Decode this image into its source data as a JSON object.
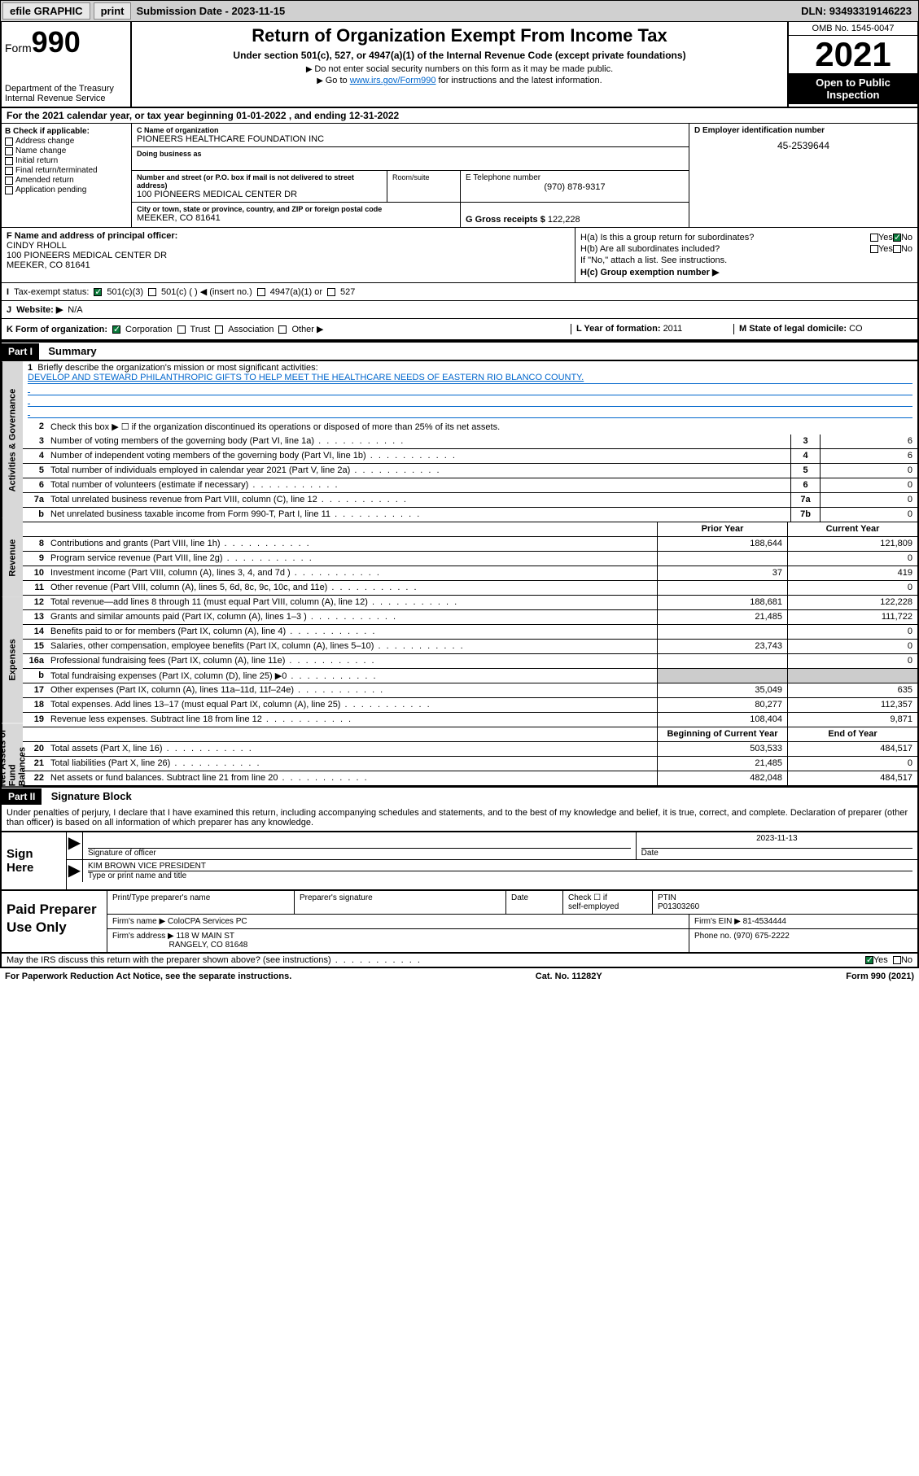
{
  "topbar": {
    "efile": "efile GRAPHIC",
    "print": "print",
    "sub_label": "Submission Date - ",
    "sub_date": "2023-11-15",
    "dln_label": "DLN: ",
    "dln": "93493319146223"
  },
  "header": {
    "form_prefix": "Form",
    "form_num": "990",
    "dept": "Department of the Treasury",
    "irs": "Internal Revenue Service",
    "title": "Return of Organization Exempt From Income Tax",
    "subtitle": "Under section 501(c), 527, or 4947(a)(1) of the Internal Revenue Code (except private foundations)",
    "instr1": "Do not enter social security numbers on this form as it may be made public.",
    "instr2_a": "Go to ",
    "instr2_link": "www.irs.gov/Form990",
    "instr2_b": " for instructions and the latest information.",
    "omb": "OMB No. 1545-0047",
    "year": "2021",
    "open": "Open to Public Inspection"
  },
  "A": {
    "line": "For the 2021 calendar year, or tax year beginning 01-01-2022 , and ending 12-31-2022"
  },
  "B": {
    "hdr": "B Check if applicable:",
    "opts": [
      "Address change",
      "Name change",
      "Initial return",
      "Final return/terminated",
      "Amended return",
      "Application pending"
    ]
  },
  "C": {
    "name_label": "C Name of organization",
    "name": "PIONEERS HEALTHCARE FOUNDATION INC",
    "dba_label": "Doing business as",
    "addr_label": "Number and street (or P.O. box if mail is not delivered to street address)",
    "addr": "100 PIONEERS MEDICAL CENTER DR",
    "room_label": "Room/suite",
    "city_label": "City or town, state or province, country, and ZIP or foreign postal code",
    "city": "MEEKER, CO  81641"
  },
  "D": {
    "label": "D Employer identification number",
    "val": "45-2539644"
  },
  "E": {
    "label": "E Telephone number",
    "val": "(970) 878-9317"
  },
  "G": {
    "label": "G Gross receipts $ ",
    "val": "122,228"
  },
  "F": {
    "label": "F Name and address of principal officer:",
    "name": "CINDY RHOLL",
    "addr1": "100 PIONEERS MEDICAL CENTER DR",
    "addr2": "MEEKER, CO  81641"
  },
  "H": {
    "a": "H(a)  Is this a group return for subordinates?",
    "b": "H(b)  Are all subordinates included?",
    "b_note": "If \"No,\" attach a list. See instructions.",
    "c": "H(c)  Group exemption number ▶",
    "yes": "Yes",
    "no": "No"
  },
  "I": {
    "label": "Tax-exempt status:",
    "o1": "501(c)(3)",
    "o2": "501(c) (  ) ◀ (insert no.)",
    "o3": "4947(a)(1) or",
    "o4": "527"
  },
  "J": {
    "label": "Website: ▶",
    "val": "N/A"
  },
  "K": {
    "label": "K Form of organization:",
    "opts": [
      "Corporation",
      "Trust",
      "Association",
      "Other ▶"
    ]
  },
  "L": {
    "label": "L Year of formation: ",
    "val": "2011"
  },
  "M": {
    "label": "M State of legal domicile: ",
    "val": "CO"
  },
  "part1": {
    "hdr": "Part I",
    "title": "Summary"
  },
  "vtabs": {
    "a": "Activities & Governance",
    "r": "Revenue",
    "e": "Expenses",
    "n": "Net Assets or Fund Balances"
  },
  "s1": {
    "q": "Briefly describe the organization's mission or most significant activities:",
    "mission": "DEVELOP AND STEWARD PHILANTHROPIC GIFTS TO HELP MEET THE HEALTHCARE NEEDS OF EASTERN RIO BLANCO COUNTY."
  },
  "s2": "Check this box ▶ ☐  if the organization discontinued its operations or disposed of more than 25% of its net assets.",
  "lines_gov": [
    {
      "n": "3",
      "t": "Number of voting members of the governing body (Part VI, line 1a)",
      "b": "3",
      "v": "6"
    },
    {
      "n": "4",
      "t": "Number of independent voting members of the governing body (Part VI, line 1b)",
      "b": "4",
      "v": "6"
    },
    {
      "n": "5",
      "t": "Total number of individuals employed in calendar year 2021 (Part V, line 2a)",
      "b": "5",
      "v": "0"
    },
    {
      "n": "6",
      "t": "Total number of volunteers (estimate if necessary)",
      "b": "6",
      "v": "0"
    },
    {
      "n": "7a",
      "t": "Total unrelated business revenue from Part VIII, column (C), line 12",
      "b": "7a",
      "v": "0"
    },
    {
      "n": "b",
      "t": "Net unrelated business taxable income from Form 990-T, Part I, line 11",
      "b": "7b",
      "v": "0"
    }
  ],
  "col_hdr": {
    "py": "Prior Year",
    "cy": "Current Year"
  },
  "lines_rev": [
    {
      "n": "8",
      "t": "Contributions and grants (Part VIII, line 1h)",
      "py": "188,644",
      "cy": "121,809"
    },
    {
      "n": "9",
      "t": "Program service revenue (Part VIII, line 2g)",
      "py": "",
      "cy": "0"
    },
    {
      "n": "10",
      "t": "Investment income (Part VIII, column (A), lines 3, 4, and 7d )",
      "py": "37",
      "cy": "419"
    },
    {
      "n": "11",
      "t": "Other revenue (Part VIII, column (A), lines 5, 6d, 8c, 9c, 10c, and 11e)",
      "py": "",
      "cy": "0"
    },
    {
      "n": "12",
      "t": "Total revenue—add lines 8 through 11 (must equal Part VIII, column (A), line 12)",
      "py": "188,681",
      "cy": "122,228"
    }
  ],
  "lines_exp": [
    {
      "n": "13",
      "t": "Grants and similar amounts paid (Part IX, column (A), lines 1–3 )",
      "py": "21,485",
      "cy": "111,722"
    },
    {
      "n": "14",
      "t": "Benefits paid to or for members (Part IX, column (A), line 4)",
      "py": "",
      "cy": "0"
    },
    {
      "n": "15",
      "t": "Salaries, other compensation, employee benefits (Part IX, column (A), lines 5–10)",
      "py": "23,743",
      "cy": "0"
    },
    {
      "n": "16a",
      "t": "Professional fundraising fees (Part IX, column (A), line 11e)",
      "py": "",
      "cy": "0"
    },
    {
      "n": "b",
      "t": "Total fundraising expenses (Part IX, column (D), line 25) ▶0",
      "py": "SHADE",
      "cy": "SHADE"
    },
    {
      "n": "17",
      "t": "Other expenses (Part IX, column (A), lines 11a–11d, 11f–24e)",
      "py": "35,049",
      "cy": "635"
    },
    {
      "n": "18",
      "t": "Total expenses. Add lines 13–17 (must equal Part IX, column (A), line 25)",
      "py": "80,277",
      "cy": "112,357"
    },
    {
      "n": "19",
      "t": "Revenue less expenses. Subtract line 18 from line 12",
      "py": "108,404",
      "cy": "9,871"
    }
  ],
  "col_hdr2": {
    "b": "Beginning of Current Year",
    "e": "End of Year"
  },
  "lines_net": [
    {
      "n": "20",
      "t": "Total assets (Part X, line 16)",
      "py": "503,533",
      "cy": "484,517"
    },
    {
      "n": "21",
      "t": "Total liabilities (Part X, line 26)",
      "py": "21,485",
      "cy": "0"
    },
    {
      "n": "22",
      "t": "Net assets or fund balances. Subtract line 21 from line 20",
      "py": "482,048",
      "cy": "484,517"
    }
  ],
  "part2": {
    "hdr": "Part II",
    "title": "Signature Block"
  },
  "sig": {
    "decl": "Under penalties of perjury, I declare that I have examined this return, including accompanying schedules and statements, and to the best of my knowledge and belief, it is true, correct, and complete. Declaration of preparer (other than officer) is based on all information of which preparer has any knowledge.",
    "sign_here": "Sign Here",
    "date": "2023-11-13",
    "sig_label": "Signature of officer",
    "date_label": "Date",
    "name": "KIM BROWN  VICE PRESIDENT",
    "name_label": "Type or print name and title"
  },
  "prep": {
    "title": "Paid Preparer Use Only",
    "h1": "Print/Type preparer's name",
    "h2": "Preparer's signature",
    "h3": "Date",
    "h4a": "Check ☐ if",
    "h4b": "self-employed",
    "ptin_label": "PTIN",
    "ptin": "P01303260",
    "firm_name_label": "Firm's name    ▶",
    "firm_name": "ColoCPA Services PC",
    "firm_ein_label": "Firm's EIN ▶",
    "firm_ein": "81-4534444",
    "firm_addr_label": "Firm's address ▶",
    "firm_addr1": "118 W MAIN ST",
    "firm_addr2": "RANGELY, CO  81648",
    "phone_label": "Phone no. ",
    "phone": "(970) 675-2222"
  },
  "footer": {
    "discuss": "May the IRS discuss this return with the preparer shown above? (see instructions)",
    "yes": "Yes",
    "no": "No",
    "paperwork": "For Paperwork Reduction Act Notice, see the separate instructions.",
    "cat": "Cat. No. 11282Y",
    "form": "Form 990 (2021)"
  }
}
